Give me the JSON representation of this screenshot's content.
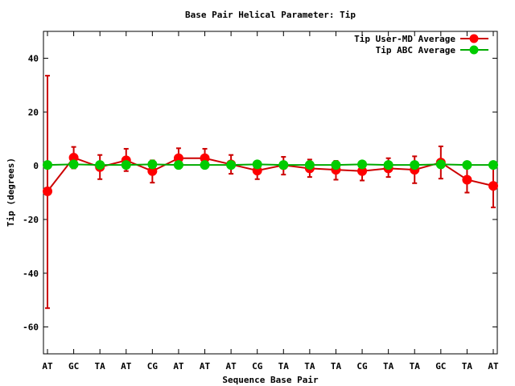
{
  "chart_data": {
    "type": "line",
    "title": "Base Pair Helical Parameter: Tip",
    "xlabel": "Sequence Base Pair",
    "ylabel": "Tip (degrees)",
    "ylim": [
      -70,
      50
    ],
    "yticks": [
      40,
      20,
      0,
      -20,
      -40,
      -60
    ],
    "categories": [
      "AT",
      "GC",
      "TA",
      "AT",
      "CG",
      "AT",
      "AT",
      "AT",
      "CG",
      "TA",
      "TA",
      "TA",
      "CG",
      "TA",
      "TA",
      "GC",
      "TA",
      "AT"
    ],
    "legend_position": "top-right",
    "grid": false,
    "series": [
      {
        "name": "Tip User-MD Average",
        "color": "#ff0000",
        "line_color": "#cc0000",
        "values": [
          -9.5,
          3.0,
          -0.5,
          2.0,
          -2.0,
          2.8,
          2.8,
          0.5,
          -1.8,
          0.2,
          -1.0,
          -1.5,
          -2.0,
          -1.0,
          -1.5,
          1.2,
          -5.2,
          -7.5
        ],
        "err_low": [
          -53,
          -1.0,
          -5.0,
          -2.0,
          -6.3,
          -1.0,
          -0.8,
          -3.0,
          -5.0,
          -3.3,
          -4.2,
          -5.2,
          -5.5,
          -4.2,
          -6.5,
          -4.8,
          -10.0,
          -15.5
        ],
        "err_high": [
          33.5,
          7.0,
          4.0,
          6.3,
          2.0,
          6.5,
          6.3,
          4.0,
          1.5,
          3.3,
          2.3,
          1.8,
          1.0,
          2.8,
          3.5,
          7.2,
          -0.5,
          0.5
        ]
      },
      {
        "name": "Tip ABC Average",
        "color": "#00cc00",
        "line_color": "#00aa00",
        "values": [
          0.3,
          0.5,
          0.3,
          0.3,
          0.5,
          0.3,
          0.3,
          0.3,
          0.5,
          0.3,
          0.3,
          0.3,
          0.5,
          0.3,
          0.3,
          0.5,
          0.3,
          0.3
        ]
      }
    ]
  }
}
